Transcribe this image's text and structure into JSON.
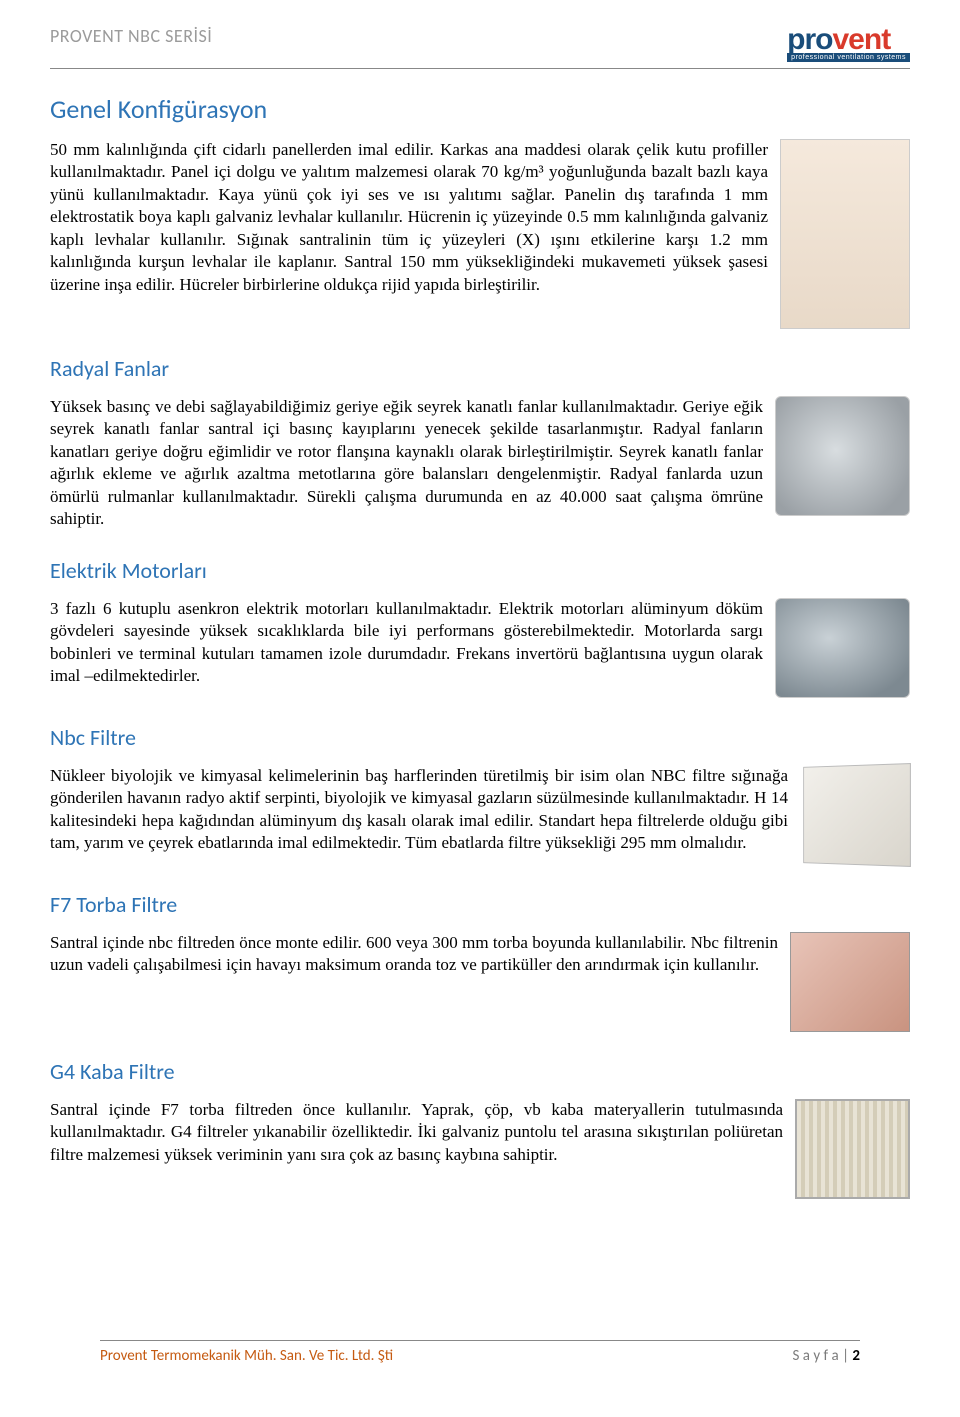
{
  "header": {
    "series": "PROVENT NBC SERİSİ",
    "logo_part1": "pro",
    "logo_part2": "vent",
    "logo_sub": "professional ventilation systems"
  },
  "sections": [
    {
      "title": "Genel Konfigürasyon",
      "text": "50 mm kalınlığında çift cidarlı panellerden imal edilir. Karkas ana maddesi olarak çelik kutu profiller kullanılmaktadır. Panel içi dolgu ve yalıtım malzemesi olarak 70 kg/m³ yoğunluğunda bazalt bazlı kaya yünü kullanılmaktadır. Kaya yünü çok iyi ses ve ısı yalıtımı sağlar. Panelin dış tarafında 1 mm elektrostatik boya kaplı galvaniz levhalar kullanılır. Hücrenin iç yüzeyinde 0.5 mm kalınlığında galvaniz kaplı levhalar kullanılır. Sığınak santralinin tüm iç yüzeyleri (X) ışını etkilerine karşı 1.2 mm kalınlığında kurşun levhalar ile kaplanır. Santral 150 mm yüksekliğindeki mukavemeti yüksek şasesi üzerine inşa edilir. Hücreler birbirlerine oldukça rijid yapıda birleştirilir."
    },
    {
      "title": "Radyal Fanlar",
      "text": "Yüksek basınç ve debi sağlayabildiğimiz geriye eğik seyrek kanatlı fanlar kullanılmaktadır. Geriye eğik seyrek kanatlı fanlar santral içi basınç kayıplarını yenecek şekilde tasarlanmıştır. Radyal fanların kanatları geriye doğru eğimlidir ve rotor flanşına kaynaklı olarak birleştirilmiştir. Seyrek kanatlı fanlar ağırlık ekleme ve ağırlık azaltma metotlarına göre balansları dengelenmiştir. Radyal fanlarda uzun ömürlü rulmanlar kullanılmaktadır. Sürekli çalışma durumunda en az 40.000 saat çalışma ömrüne sahiptir."
    },
    {
      "title": "Elektrik Motorları",
      "text": "3 fazlı 6 kutuplu asenkron elektrik motorları kullanılmaktadır. Elektrik motorları alüminyum döküm gövdeleri sayesinde yüksek sıcaklıklarda bile iyi performans gösterebilmektedir. Motorlarda sargı bobinleri ve terminal kutuları tamamen izole durumdadır. Frekans invertörü bağlantısına uygun olarak imal –edilmektedirler."
    },
    {
      "title": "Nbc Filtre",
      "text": "Nükleer biyolojik ve kimyasal kelimelerinin baş harflerinden türetilmiş bir isim olan NBC filtre sığınağa gönderilen havanın radyo aktif serpinti, biyolojik ve kimyasal gazların süzülmesinde kullanılmaktadır. H 14 kalitesindeki hepa kağıdından alüminyum dış kasalı olarak imal edilir. Standart hepa filtrelerde olduğu gibi tam, yarım ve çeyrek ebatlarında imal edilmektedir. Tüm ebatlarda filtre yüksekliği 295 mm olmalıdır."
    },
    {
      "title": "F7 Torba Filtre",
      "text": "Santral içinde nbc filtreden önce monte edilir. 600 veya 300 mm torba boyunda kullanılabilir. Nbc filtrenin uzun vadeli çalışabilmesi için havayı maksimum oranda toz ve partiküller den arındırmak için kullanılır."
    },
    {
      "title": "G4 Kaba Filtre",
      "text": "Santral içinde F7 torba filtreden önce kullanılır. Yaprak, çöp, vb kaba materyallerin tutulmasında kullanılmaktadır. G4 filtreler yıkanabilir özelliktedir. İki galvaniz puntolu tel arasına sıkıştırılan poliüretan filtre malzemesi yüksek veriminin yanı sıra çok az basınç kaybına sahiptir."
    }
  ],
  "footer": {
    "company": "Provent Termomekanik Müh. San. Ve Tic. Ltd. Şti",
    "page_label": "S a y f a",
    "page_num": "2"
  },
  "colors": {
    "heading": "#2e74b5",
    "header_gray": "#9b9b9b",
    "footer_orange": "#c55a11",
    "logo_blue": "#1a4d7a",
    "logo_red": "#d93a2b"
  }
}
